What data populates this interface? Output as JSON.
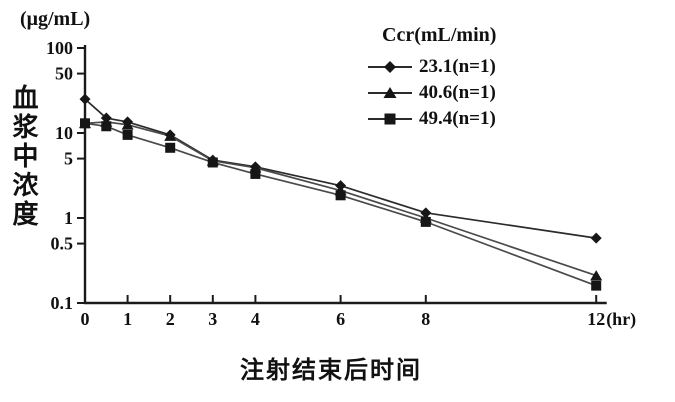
{
  "figure": {
    "y_unit_label": "(μg/mL)",
    "y_axis_title": "血浆中浓度",
    "x_axis_title": "注射结束后时间",
    "x_unit_label": "(hr)"
  },
  "legend": {
    "title": "Ccr(mL/min)",
    "items": [
      {
        "marker": "diamond",
        "label": "23.1(n=1)"
      },
      {
        "marker": "triangle",
        "label": "40.6(n=1)"
      },
      {
        "marker": "square",
        "label": "49.4(n=1)"
      }
    ]
  },
  "colors": {
    "axis": "#1a1a1a",
    "text": "#111111",
    "marker": "#161616",
    "line_primary": "#2b2b2b",
    "line_secondary": "#4a4a4a",
    "background": "#ffffff"
  },
  "chart_data": {
    "type": "line",
    "title": "",
    "xlabel": "注射结束后时间",
    "ylabel": "血浆中浓度",
    "y_unit": "(μg/mL)",
    "x_unit": "(hr)",
    "x_scale": "linear",
    "y_scale": "log",
    "grid": false,
    "legend_title": "Ccr(mL/min)",
    "legend_position": "top-right",
    "xlim": [
      0,
      12.2
    ],
    "ylim": [
      0.1,
      100
    ],
    "xticks": [
      0,
      1,
      2,
      3,
      4,
      6,
      8,
      12
    ],
    "yticks": [
      100,
      50,
      10,
      5,
      1,
      0.5,
      0.1
    ],
    "x": [
      0,
      0.5,
      1,
      2,
      3,
      4,
      6,
      8,
      12
    ],
    "series": [
      {
        "name": "23.1(n=1)",
        "ccr_ml_min": 23.1,
        "marker": "diamond",
        "values": [
          25,
          15,
          13.5,
          9.5,
          4.8,
          4.0,
          2.4,
          1.15,
          0.58
        ]
      },
      {
        "name": "40.6(n=1)",
        "ccr_ml_min": 40.6,
        "marker": "triangle",
        "values": [
          13,
          13.5,
          12.5,
          9.2,
          4.7,
          3.9,
          2.1,
          1.0,
          0.21
        ]
      },
      {
        "name": "49.4(n=1)",
        "ccr_ml_min": 49.4,
        "marker": "square",
        "values": [
          13,
          12,
          9.5,
          6.7,
          4.5,
          3.3,
          1.85,
          0.9,
          0.16
        ]
      }
    ]
  }
}
